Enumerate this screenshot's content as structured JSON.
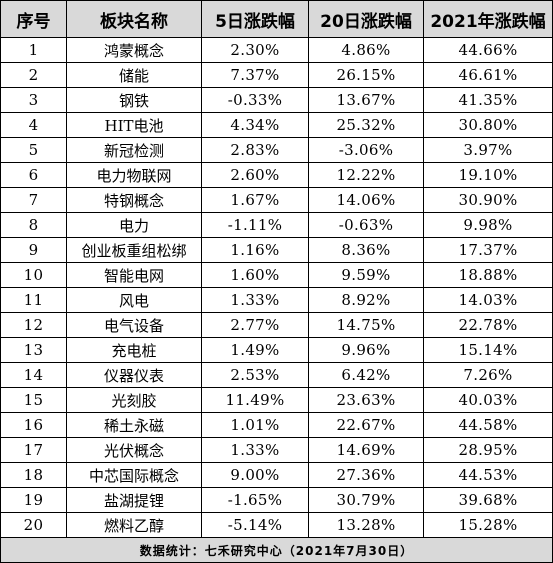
{
  "headers": [
    "序号",
    "板块名称",
    "5日涨跌幅",
    "20日涨跌幅",
    "2021年涨跌幅"
  ],
  "rows": [
    [
      "1",
      "鸿蒙概念",
      "2.30%",
      "4.86%",
      "44.66%"
    ],
    [
      "2",
      "储能",
      "7.37%",
      "26.15%",
      "46.61%"
    ],
    [
      "3",
      "钢铁",
      "-0.33%",
      "13.67%",
      "41.35%"
    ],
    [
      "4",
      "HIT电池",
      "4.34%",
      "25.32%",
      "30.80%"
    ],
    [
      "5",
      "新冠检测",
      "2.83%",
      "-3.06%",
      "3.97%"
    ],
    [
      "6",
      "电力物联网",
      "2.60%",
      "12.22%",
      "19.10%"
    ],
    [
      "7",
      "特钢概念",
      "1.67%",
      "14.06%",
      "30.90%"
    ],
    [
      "8",
      "电力",
      "-1.11%",
      "-0.63%",
      "9.98%"
    ],
    [
      "9",
      "创业板重组松绑",
      "1.16%",
      "8.36%",
      "17.37%"
    ],
    [
      "10",
      "智能电网",
      "1.60%",
      "9.59%",
      "18.88%"
    ],
    [
      "11",
      "风电",
      "1.33%",
      "8.92%",
      "14.03%"
    ],
    [
      "12",
      "电气设备",
      "2.77%",
      "14.75%",
      "22.78%"
    ],
    [
      "13",
      "充电桩",
      "1.49%",
      "9.96%",
      "15.14%"
    ],
    [
      "14",
      "仪器仪表",
      "2.53%",
      "6.42%",
      "7.26%"
    ],
    [
      "15",
      "光刻胶",
      "11.49%",
      "23.63%",
      "40.03%"
    ],
    [
      "16",
      "稀土永磁",
      "1.01%",
      "22.67%",
      "44.58%"
    ],
    [
      "17",
      "光伏概念",
      "1.33%",
      "14.69%",
      "28.95%"
    ],
    [
      "18",
      "中芯国际概念",
      "9.00%",
      "27.36%",
      "44.53%"
    ],
    [
      "19",
      "盐湖提锂",
      "-1.65%",
      "30.79%",
      "39.68%"
    ],
    [
      "20",
      "燃料乙醇",
      "-5.14%",
      "13.28%",
      "15.28%"
    ]
  ],
  "footer": "数据统计：七禾研究中心（2021年7月30日）"
}
